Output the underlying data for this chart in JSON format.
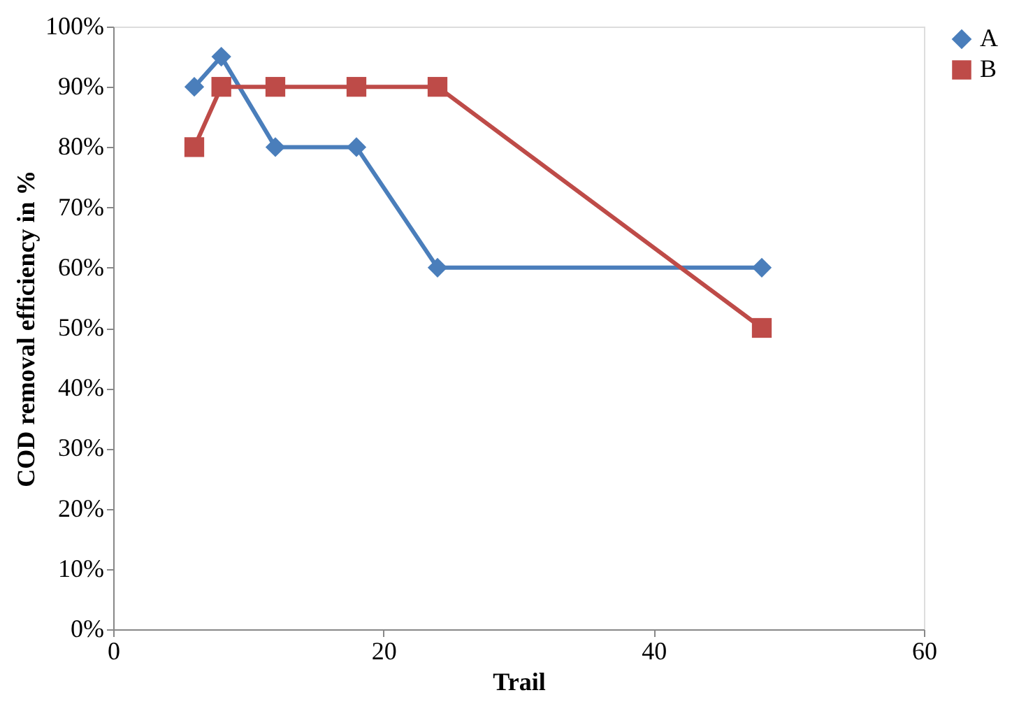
{
  "chart_data": {
    "type": "line",
    "xlabel": "Trail",
    "ylabel": "COD removal efficiency in %",
    "x": [
      6,
      8,
      12,
      18,
      24,
      48
    ],
    "series": [
      {
        "name": "A",
        "color": "#4a7ebb",
        "marker": "diamond",
        "values": [
          90,
          95,
          80,
          80,
          60,
          60
        ]
      },
      {
        "name": "B",
        "color": "#be4b48",
        "marker": "square",
        "values": [
          80,
          90,
          90,
          90,
          90,
          50
        ]
      }
    ],
    "xlim": [
      0,
      60
    ],
    "xticks": [
      0,
      20,
      40,
      60
    ],
    "ylim": [
      0,
      100
    ],
    "yticks": [
      {
        "value": 0,
        "label": "0%"
      },
      {
        "value": 10,
        "label": "10%"
      },
      {
        "value": 20,
        "label": "20%"
      },
      {
        "value": 30,
        "label": "30%"
      },
      {
        "value": 40,
        "label": "40%"
      },
      {
        "value": 50,
        "label": "50%"
      },
      {
        "value": 60,
        "label": "60%"
      },
      {
        "value": 70,
        "label": "70%"
      },
      {
        "value": 80,
        "label": "80%"
      },
      {
        "value": 90,
        "label": "90%"
      },
      {
        "value": 100,
        "label": "100%"
      }
    ],
    "grid": false,
    "legend": "right",
    "line_style": "solid"
  }
}
